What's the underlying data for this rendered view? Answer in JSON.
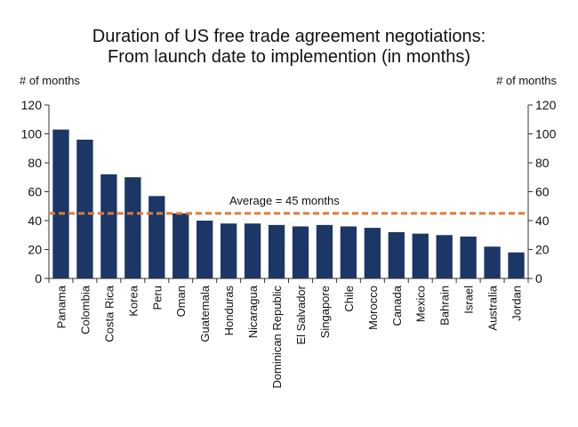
{
  "colors": {
    "bar": "#1c3766",
    "average_line": "#e07b39",
    "axis": "#333333",
    "text": "#111111"
  },
  "chart_data": {
    "type": "bar",
    "title_lines": [
      "Duration of US free trade agreement negotiations:",
      "From launch date to implemention (in months)"
    ],
    "ylabel_left": "# of months",
    "ylabel_right": "# of months",
    "ylim": [
      0,
      120
    ],
    "yticks": [
      0,
      20,
      40,
      60,
      80,
      100,
      120
    ],
    "categories": [
      "Panama",
      "Colombia",
      "Costa Rica",
      "Korea",
      "Peru",
      "Oman",
      "Guatemala",
      "Honduras",
      "Nicaragua",
      "Dominican Republic",
      "El Salvador",
      "Singapore",
      "Chile",
      "Morocco",
      "Canada",
      "Mexico",
      "Bahrain",
      "Israel",
      "Australia",
      "Jordan"
    ],
    "values": [
      103,
      96,
      72,
      70,
      57,
      45,
      40,
      38,
      38,
      37,
      36,
      37,
      36,
      35,
      32,
      31,
      30,
      29,
      22,
      18
    ],
    "average": {
      "value": 45,
      "label": "Average = 45 months"
    },
    "grid": false,
    "legend": "none"
  }
}
